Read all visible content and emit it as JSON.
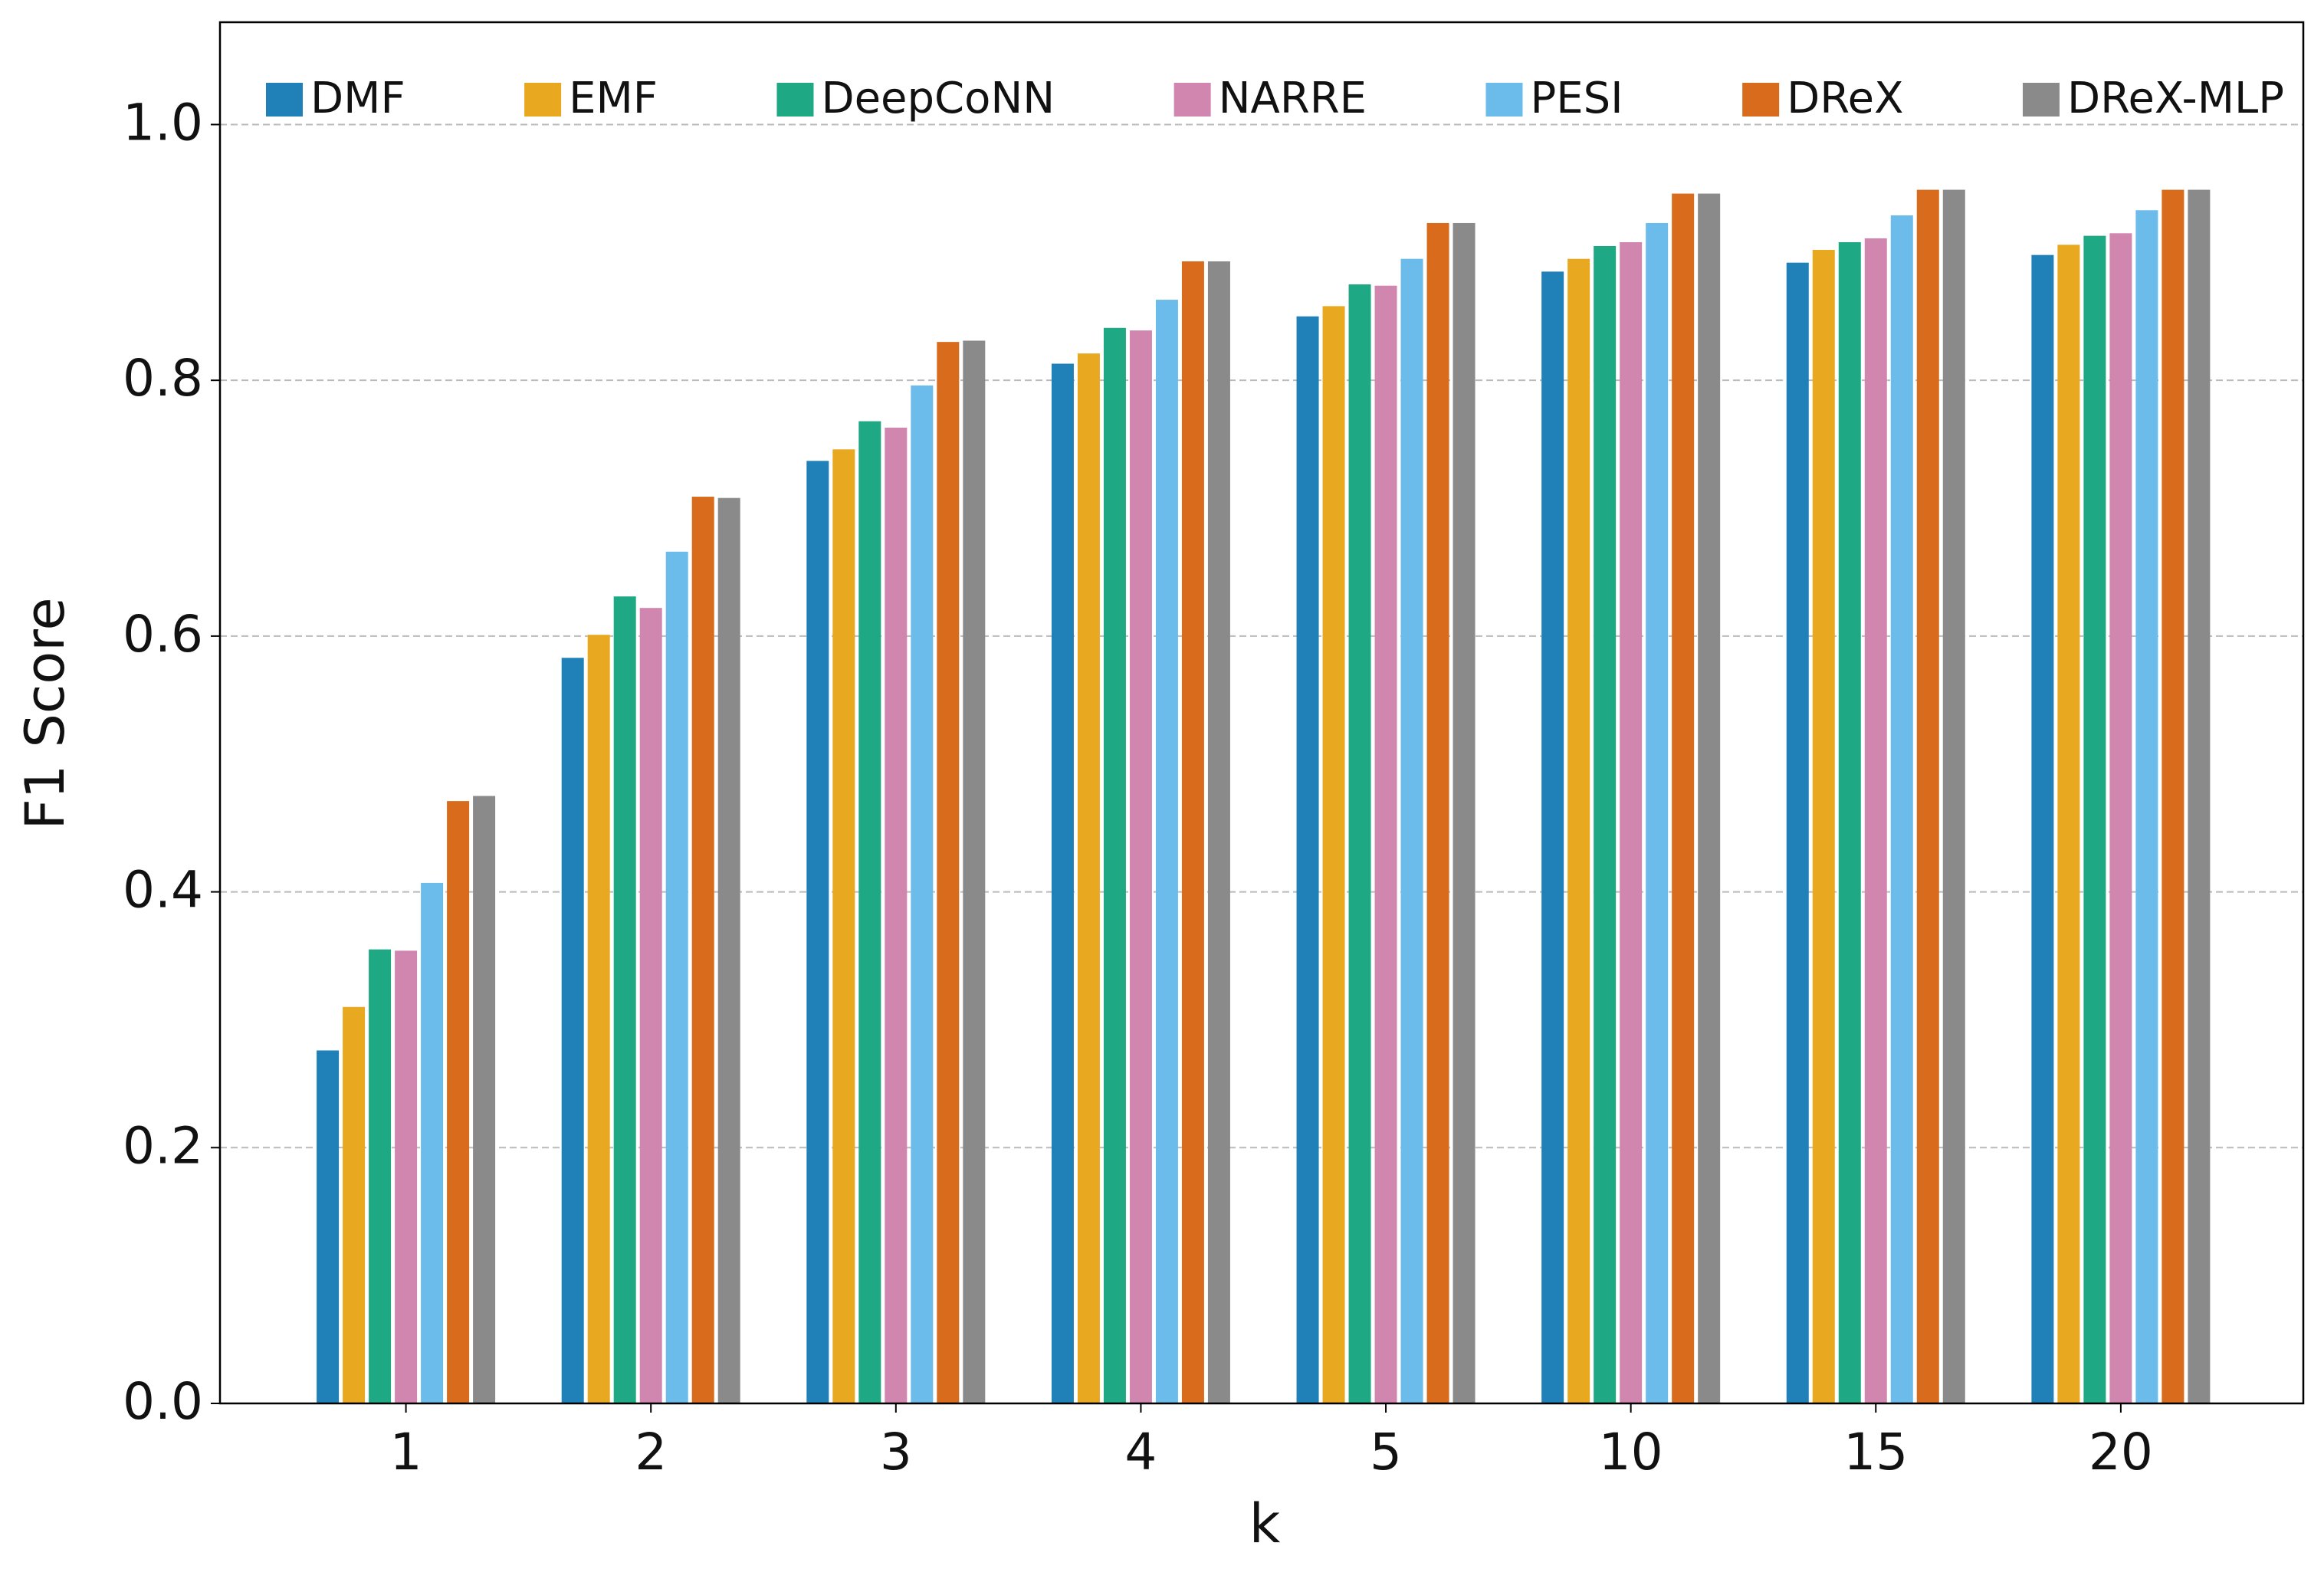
{
  "chart_data": {
    "type": "bar",
    "x_label": "k",
    "y_label": "F1 Score",
    "categories": [
      "1",
      "2",
      "3",
      "4",
      "5",
      "10",
      "15",
      "20"
    ],
    "series": [
      {
        "name": "DMF",
        "color": "#1f81b8",
        "values": [
          0.276,
          0.583,
          0.737,
          0.813,
          0.85,
          0.885,
          0.892,
          0.898
        ]
      },
      {
        "name": "EMF",
        "color": "#e8a820",
        "values": [
          0.31,
          0.601,
          0.746,
          0.821,
          0.858,
          0.895,
          0.902,
          0.906
        ]
      },
      {
        "name": "DeepCoNN",
        "color": "#1ea884",
        "values": [
          0.355,
          0.631,
          0.768,
          0.841,
          0.875,
          0.905,
          0.908,
          0.913
        ]
      },
      {
        "name": "NARRE",
        "color": "#d186b0",
        "values": [
          0.354,
          0.622,
          0.763,
          0.839,
          0.874,
          0.908,
          0.911,
          0.915
        ]
      },
      {
        "name": "PESI",
        "color": "#6bbcea",
        "values": [
          0.407,
          0.666,
          0.796,
          0.863,
          0.895,
          0.923,
          0.929,
          0.933
        ]
      },
      {
        "name": "DReX",
        "color": "#d86b1c",
        "values": [
          0.471,
          0.709,
          0.83,
          0.893,
          0.923,
          0.946,
          0.949,
          0.949
        ]
      },
      {
        "name": "DReX-MLP",
        "color": "#8a8a8a",
        "values": [
          0.475,
          0.708,
          0.831,
          0.893,
          0.923,
          0.946,
          0.949,
          0.949
        ]
      }
    ],
    "ylim": [
      0,
      1.08
    ],
    "yticks": [
      {
        "value": 0,
        "label": "0.0"
      },
      0.2,
      0.4,
      0.6,
      0.8,
      {
        "value": 1,
        "label": "1.0"
      }
    ],
    "grid": true,
    "legend": "top"
  }
}
